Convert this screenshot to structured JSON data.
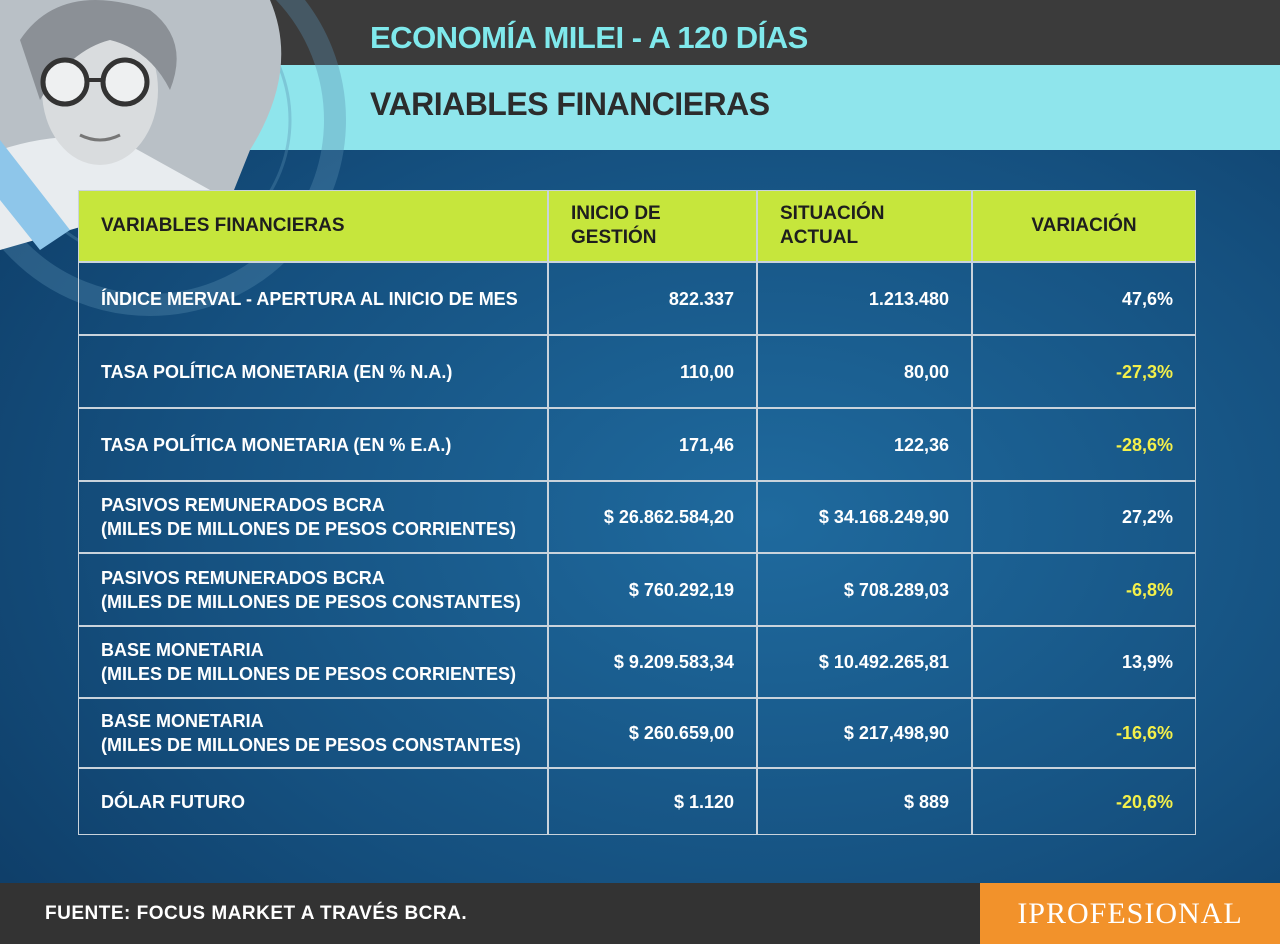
{
  "header": {
    "title": "ECONOMÍA MILEI - A 120 DÍAS",
    "subtitle": "VARIABLES FINANCIERAS"
  },
  "table": {
    "columns": [
      "VARIABLES FINANCIERAS",
      "INICIO DE GESTIÓN",
      "SITUACIÓN ACTUAL",
      "VARIACIÓN"
    ],
    "rows": [
      [
        [
          "ÍNDICE MERVAL - APERTURA AL INICIO DE MES"
        ],
        "822.337",
        "1.213.480",
        "47,6%"
      ],
      [
        [
          "TASA POLÍTICA MONETARIA (EN % N.A.)"
        ],
        "110,00",
        "80,00",
        "-27,3%"
      ],
      [
        [
          "TASA POLÍTICA MONETARIA (EN % E.A.)"
        ],
        "171,46",
        "122,36",
        "-28,6%"
      ],
      [
        [
          "PASIVOS REMUNERADOS BCRA",
          "(MILES DE MILLONES DE PESOS CORRIENTES)"
        ],
        "$ 26.862.584,20",
        "$ 34.168.249,90",
        "27,2%"
      ],
      [
        [
          "PASIVOS REMUNERADOS BCRA",
          "(MILES DE MILLONES DE PESOS CONSTANTES)"
        ],
        "$ 760.292,19",
        "$ 708.289,03",
        "-6,8%"
      ],
      [
        [
          "BASE MONETARIA",
          "(MILES DE MILLONES DE PESOS CORRIENTES)"
        ],
        "$ 9.209.583,34",
        "$ 10.492.265,81",
        "13,9%"
      ],
      [
        [
          "BASE MONETARIA",
          "(MILES DE MILLONES DE PESOS CONSTANTES)"
        ],
        "$ 260.659,00",
        "$ 217,498,90",
        "-16,6%"
      ],
      [
        [
          "DÓLAR FUTURO"
        ],
        "$ 1.120",
        "$ 889",
        "-20,6%"
      ]
    ]
  },
  "footer": {
    "source": "FUENTE: FOCUS MARKET A TRAVÉS BCRA.",
    "brand": "IPROFESIONAL"
  }
}
